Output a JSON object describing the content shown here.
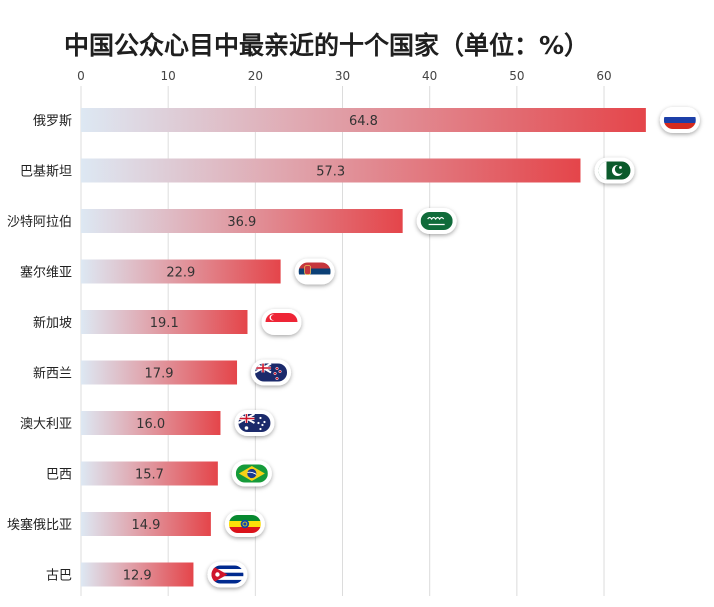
{
  "chart_data": {
    "type": "bar",
    "orientation": "horizontal",
    "title": "中国公众心目中最亲近的十个国家（单位：%）",
    "xlabel": "",
    "ylabel": "",
    "xlim": [
      0,
      65
    ],
    "ticks": [
      0,
      10,
      20,
      30,
      40,
      50,
      60
    ],
    "tick_labels": [
      "0",
      "10",
      "20",
      "30",
      "40",
      "50",
      "60"
    ],
    "grid": true,
    "categories": [
      "俄罗斯",
      "巴基斯坦",
      "沙特阿拉伯",
      "塞尔维亚",
      "新加坡",
      "新西兰",
      "澳大利亚",
      "巴西",
      "埃塞俄比亚",
      "古巴"
    ],
    "values": [
      64.8,
      57.3,
      36.9,
      22.9,
      19.1,
      17.9,
      16.0,
      15.7,
      14.9,
      12.9
    ],
    "value_labels": [
      "64.8",
      "57.3",
      "36.9",
      "22.9",
      "19.1",
      "17.9",
      "16.0",
      "15.7",
      "14.9",
      "12.9"
    ],
    "bar_gradient": [
      "#dde8f3",
      "#e4454a"
    ],
    "flags": [
      "russia-flag-icon",
      "pakistan-flag-icon",
      "saudi-arabia-flag-icon",
      "serbia-flag-icon",
      "singapore-flag-icon",
      "new-zealand-flag-icon",
      "australia-flag-icon",
      "brazil-flag-icon",
      "ethiopia-flag-icon",
      "cuba-flag-icon"
    ]
  }
}
